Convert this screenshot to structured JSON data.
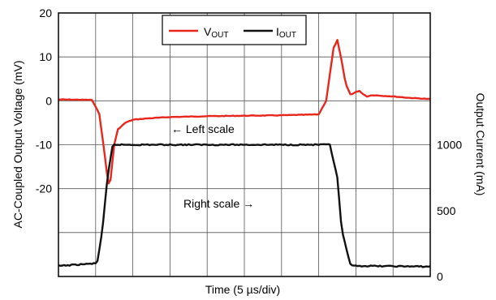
{
  "chart_data": {
    "type": "line",
    "xlabel": "Time (5 µs/div)",
    "ylabel_left": "AC-Coupled Output Voltage (mV)",
    "ylabel_right": "Output Current (mA)",
    "x_divisions": 10,
    "x_range": [
      0,
      50
    ],
    "x_unit": "µs",
    "ylim_left": [
      -40,
      20
    ],
    "ylim_right": [
      0,
      2000
    ],
    "left_ticks": [
      "20",
      "10",
      "0",
      "-10",
      "-20"
    ],
    "left_tick_values": [
      20,
      10,
      0,
      -10,
      -20
    ],
    "right_ticks": [
      "1000",
      "500",
      "0"
    ],
    "right_tick_values": [
      1000,
      500,
      0
    ],
    "grid": true,
    "legend": {
      "placement": "top-center",
      "items": [
        {
          "main": "V",
          "sub": "OUT",
          "color": "#e8261c"
        },
        {
          "main": "I",
          "sub": "OUT",
          "color": "#111111"
        }
      ]
    },
    "annotations": [
      {
        "text": "← Left scale",
        "x": 16,
        "y_left": -6.5
      },
      {
        "text": "Right scale →",
        "x": 17,
        "y_left": -23.5
      }
    ],
    "series": [
      {
        "name": "VOUT",
        "axis": "left",
        "color": "#e8261c",
        "x": [
          0,
          4.5,
          5.5,
          6.2,
          6.7,
          7.0,
          7.5,
          8.0,
          9,
          10,
          12,
          15,
          20,
          25,
          30,
          35,
          36,
          36.5,
          37,
          37.5,
          38.1,
          38.6,
          39.3,
          39.9,
          40.5,
          41,
          41.5,
          42.2,
          43,
          45,
          47,
          50
        ],
        "values": [
          0.3,
          0.2,
          -3,
          -12,
          -19,
          -18,
          -10,
          -6.5,
          -5,
          -4.3,
          -4.0,
          -3.7,
          -3.5,
          -3.4,
          -3.3,
          -3.1,
          0,
          6,
          12,
          13.8,
          9,
          4,
          1.3,
          2,
          2.2,
          1.5,
          1.0,
          1.3,
          1.2,
          1.0,
          0.7,
          0.4
        ]
      },
      {
        "name": "IOUT",
        "axis": "right",
        "color": "#111111",
        "x": [
          0,
          5.2,
          5.9,
          6.6,
          7.3,
          8.5,
          35,
          36.5,
          37.5,
          38.1,
          39.3,
          41,
          50
        ],
        "values": [
          80,
          100,
          350,
          750,
          1000,
          1000,
          1000,
          1000,
          750,
          350,
          80,
          80,
          75
        ]
      }
    ]
  }
}
